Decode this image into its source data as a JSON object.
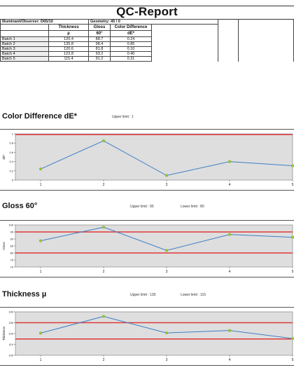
{
  "report": {
    "title": "QC-Report",
    "illuminant": "Illuminant/Observer: D65/10",
    "geometry": "Geometry: 45 / 0"
  },
  "table": {
    "headers": [
      "",
      "Thickness",
      "Gloss",
      "Color Difference"
    ],
    "units": [
      "",
      "µ",
      "60°",
      "dE*"
    ],
    "rows": [
      {
        "name": "Batch 1",
        "thickness": "120.4",
        "gloss": "88.7",
        "de": "0.24"
      },
      {
        "name": "Batch 2",
        "thickness": "135.8",
        "gloss": "98.4",
        "de": "0.85"
      },
      {
        "name": "Batch 3",
        "thickness": "120.6",
        "gloss": "81.8",
        "de": "0.10"
      },
      {
        "name": "Batch 4",
        "thickness": "122.8",
        "gloss": "93.2",
        "de": "0.40"
      },
      {
        "name": "Batch 5",
        "thickness": "115.4",
        "gloss": "91.2",
        "de": "0.31"
      }
    ]
  },
  "sections": [
    {
      "title": "Color Difference dE*",
      "upper": "Upper limit : 1",
      "lower": ""
    },
    {
      "title": "Gloss 60°",
      "upper": "Upper limit : 95",
      "lower": "Lower limit : 80"
    },
    {
      "title": "Thickness µ",
      "upper": "Upper limit : 130",
      "lower": "Lower limit : 115"
    }
  ],
  "chart_data": [
    {
      "type": "line",
      "title": "",
      "x": [
        1,
        2,
        3,
        4,
        5
      ],
      "series": [
        {
          "values": [
            0.24,
            0.85,
            0.1,
            0.4,
            0.31
          ]
        }
      ],
      "ylabel": "dE*",
      "ylim": [
        0,
        1
      ],
      "yticks": [
        "1",
        "0.8",
        "0.6",
        "0.4",
        "0.2",
        "0"
      ],
      "upper_limit": 1,
      "lower_limit": null,
      "colors": {
        "line": "#3d7fc4",
        "limit": "#e03a3a",
        "marker": "#9acd32",
        "fill": "#dedede"
      }
    },
    {
      "type": "line",
      "title": "",
      "x": [
        1,
        2,
        3,
        4,
        5
      ],
      "series": [
        {
          "values": [
            88.7,
            98.4,
            81.8,
            93.2,
            91.2
          ]
        }
      ],
      "ylabel": "Gloss",
      "ylim": [
        70,
        100
      ],
      "yticks": [
        "100",
        "95",
        "90",
        "85",
        "80",
        "75",
        "70"
      ],
      "upper_limit": 95,
      "lower_limit": 80,
      "colors": {
        "line": "#3d7fc4",
        "limit": "#e03a3a",
        "marker": "#9acd32",
        "fill": "#dedede"
      }
    },
    {
      "type": "line",
      "title": "",
      "x": [
        1,
        2,
        3,
        4,
        5
      ],
      "series": [
        {
          "values": [
            120.4,
            135.8,
            120.6,
            122.8,
            115.4
          ]
        }
      ],
      "ylabel": "Thickness",
      "ylim": [
        100,
        140
      ],
      "yticks": [
        "140",
        "130",
        "120",
        "110",
        "100"
      ],
      "upper_limit": 130,
      "lower_limit": 115,
      "colors": {
        "line": "#3d7fc4",
        "limit": "#e03a3a",
        "marker": "#9acd32",
        "fill": "#dedede"
      }
    }
  ]
}
